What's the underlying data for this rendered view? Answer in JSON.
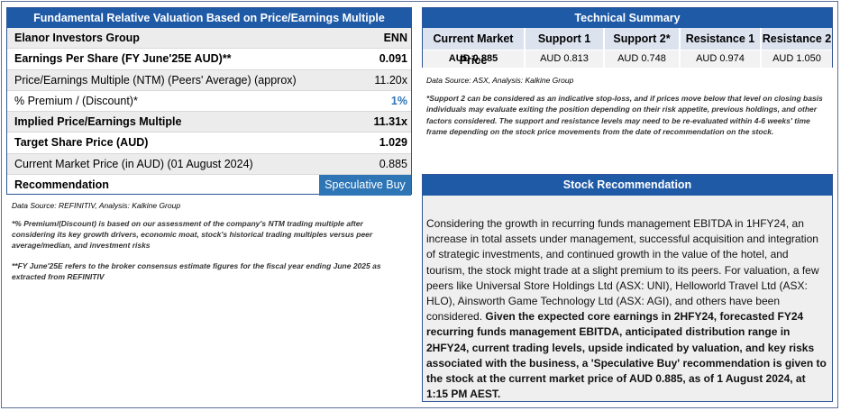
{
  "valuation": {
    "title": "Fundamental Relative Valuation Based on Price/Earnings Multiple",
    "company": "Elanor Investors Group",
    "ticker": "ENN",
    "rows": [
      {
        "label": "Earnings Per Share (FY June'25E AUD)**",
        "value": "0.091"
      },
      {
        "label": "Price/Earnings Multiple (NTM)  (Peers' Average) (approx)",
        "value": "11.20x"
      },
      {
        "label": "% Premium / (Discount)*",
        "value": "1%"
      },
      {
        "label": "Implied Price/Earnings Multiple",
        "value": "11.31x"
      },
      {
        "label": "Target Share Price (AUD)",
        "value": "1.029"
      },
      {
        "label": "Current Market Price (in AUD) (01 August 2024)",
        "value": "0.885"
      }
    ],
    "recommendation_label": "Recommendation",
    "recommendation_value": "Speculative Buy",
    "source": "Data Source: REFINITIV, Analysis: Kalkine Group",
    "note_premium": "*% Premium/(Discount) is based on our assessment of the company's NTM trading multiple after considering its key growth drivers, economic moat, stock's historical trading multiples versus peer average/median, and investment risks",
    "note_fy": "**FY June'25E refers to the broker consensus estimate figures for the fiscal year ending June 2025  as extracted from REFINITIV"
  },
  "technical": {
    "title": "Technical Summary",
    "columns": [
      {
        "header": "Current Market Price",
        "value": "AUD 0.885"
      },
      {
        "header": "Support 1",
        "value": "AUD 0.813"
      },
      {
        "header": "Support 2*",
        "value": "AUD 0.748"
      },
      {
        "header": "Resistance 1",
        "value": "AUD 0.974"
      },
      {
        "header": "Resistance 2",
        "value": "AUD 1.050"
      }
    ],
    "source": "Data Source: ASX, Analysis: Kalkine Group",
    "note": "*Support 2 can be considered as an indicative stop-loss, and if prices move below that level on closing basis individuals may evaluate exiting the position depending on their risk appetite, previous holdings, and other factors considered. The support and resistance levels may need to be re-evaluated within 4-6 weeks' time frame depending on the stock price movements from the date of recommendation on the stock."
  },
  "recommendation": {
    "title": "Stock Recommendation",
    "text_plain": "Considering the growth in recurring funds management EBITDA in 1HFY24, an increase in total assets under management, successful acquisition and integration of strategic investments, and continued growth in the value of the hotel, and tourism, the stock might trade at a slight premium to its peers. For valuation, a few peers like Universal Store Holdings Ltd (ASX: UNI), Helloworld Travel Ltd (ASX: HLO), Ainsworth Game Technology Ltd (ASX: AGI), and others have been considered. ",
    "text_bold": "Given the expected core earnings in 2HFY24, forecasted FY24 recurring funds management EBITDA, anticipated distribution range in 2HFY24, current trading levels, upside indicated by valuation, and key risks associated with the business, a 'Speculative Buy' recommendation is given to the stock at the current market price of AUD 0.885, as of 1 August 2024, at 1:15 PM AEST."
  }
}
